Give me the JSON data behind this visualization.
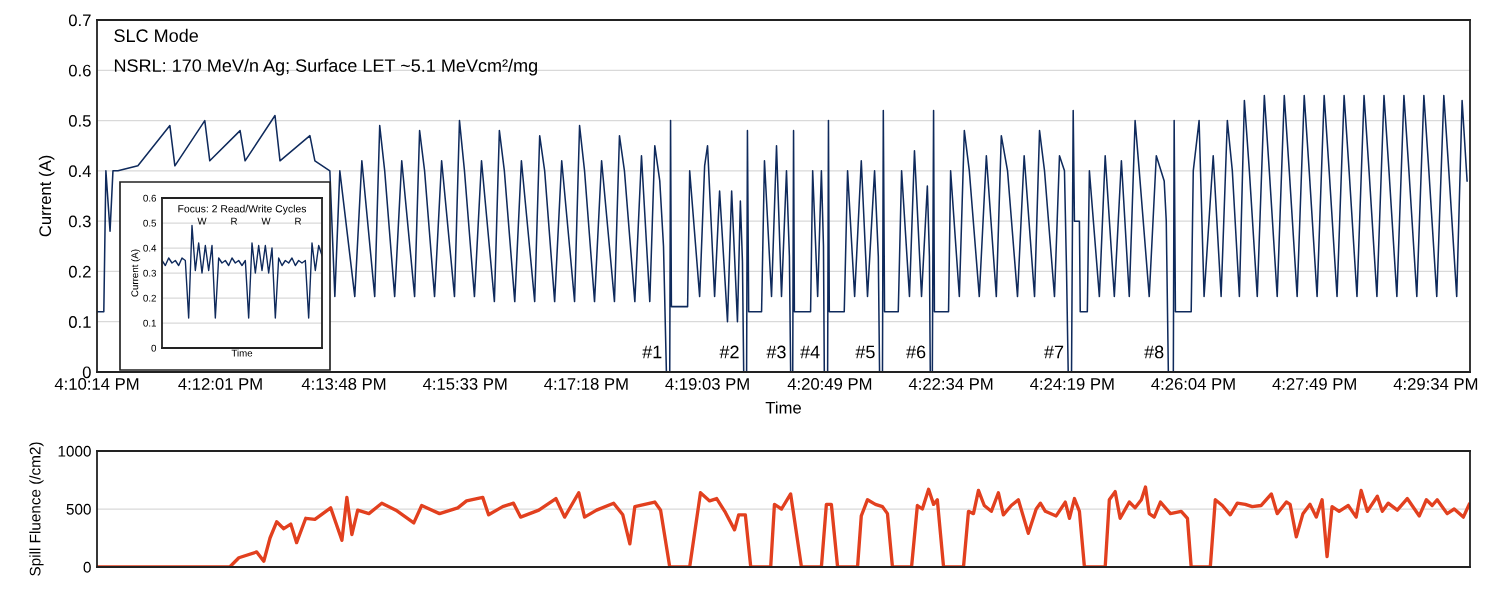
{
  "chart_data": [
    {
      "type": "line",
      "title": "SLC Mode",
      "subtitle": "NSRL: 170 MeV/n Ag; Surface LET ~5.1 MeVcm²/mg",
      "xlabel": "Time",
      "ylabel": "Current (A)",
      "xlim": [
        16.17056,
        16.501
      ],
      "ylim": [
        0,
        0.7
      ],
      "yticks": [
        0,
        0.1,
        0.2,
        0.3,
        0.4,
        0.5,
        0.6,
        0.7
      ],
      "xticks": [
        {
          "value": 16.17056,
          "label": "4:10:14 PM"
        },
        {
          "value": 16.20028,
          "label": "4:12:01 PM"
        },
        {
          "value": 16.23,
          "label": "4:13:48 PM"
        },
        {
          "value": 16.25917,
          "label": "4:15:33 PM"
        },
        {
          "value": 16.28833,
          "label": "4:17:18 PM"
        },
        {
          "value": 16.3175,
          "label": "4:19:03 PM"
        },
        {
          "value": 16.34694,
          "label": "4:20:49 PM"
        },
        {
          "value": 16.37611,
          "label": "4:22:34 PM"
        },
        {
          "value": 16.40528,
          "label": "4:24:19 PM"
        },
        {
          "value": 16.43444,
          "label": "4:26:04 PM"
        },
        {
          "value": 16.46361,
          "label": "4:27:49 PM"
        },
        {
          "value": 16.49278,
          "label": "4:29:34 PM"
        }
      ],
      "grid": "y",
      "annotations": [
        {
          "text": "#1",
          "x": 16.3076,
          "y": 0.02
        },
        {
          "text": "#2",
          "x": 16.3262,
          "y": 0.02
        },
        {
          "text": "#3",
          "x": 16.3375,
          "y": 0.02
        },
        {
          "text": "#4",
          "x": 16.3456,
          "y": 0.02
        },
        {
          "text": "#5",
          "x": 16.3589,
          "y": 0.02
        },
        {
          "text": "#6",
          "x": 16.3711,
          "y": 0.02
        },
        {
          "text": "#7",
          "x": 16.4043,
          "y": 0.02
        },
        {
          "text": "#8",
          "x": 16.4284,
          "y": 0.02
        }
      ],
      "series": [
        {
          "color": "#0f2a5c",
          "x": [
            16.1706,
            16.1722,
            16.1727,
            16.1737,
            16.1744,
            16.1756,
            16.1804,
            16.1881,
            16.1893,
            16.1965,
            16.1977,
            16.205,
            16.2062,
            16.2134,
            16.2146,
            16.2218,
            16.223,
            16.2266,
            16.2278,
            16.229,
            16.2326,
            16.2343,
            16.2374,
            16.2386,
            16.2398,
            16.2422,
            16.2439,
            16.247,
            16.2482,
            16.2494,
            16.2518,
            16.2535,
            16.2566,
            16.2578,
            16.259,
            16.2614,
            16.2631,
            16.2662,
            16.2674,
            16.2686,
            16.2711,
            16.2727,
            16.2759,
            16.2771,
            16.2783,
            16.2807,
            16.2824,
            16.2855,
            16.2867,
            16.2879,
            16.2903,
            16.292,
            16.2951,
            16.2963,
            16.2975,
            16.3,
            16.3016,
            16.3036,
            16.3048,
            16.306,
            16.3069,
            16.3076,
            16.3084,
            16.3086,
            16.3088,
            16.3127,
            16.3132,
            16.3156,
            16.3168,
            16.3175,
            16.3192,
            16.3204,
            16.3223,
            16.3233,
            16.3247,
            16.3254,
            16.3259,
            16.3262,
            16.3269,
            16.3271,
            16.3274,
            16.3305,
            16.3312,
            16.3329,
            16.3341,
            16.3353,
            16.3365,
            16.3372,
            16.3375,
            16.338,
            16.3382,
            16.3384,
            16.3423,
            16.3428,
            16.344,
            16.3449,
            16.3454,
            16.3456,
            16.3464,
            16.3466,
            16.3468,
            16.3504,
            16.3512,
            16.3529,
            16.3545,
            16.356,
            16.3577,
            16.3586,
            16.3589,
            16.3596,
            16.3598,
            16.3601,
            16.3634,
            16.3642,
            16.3661,
            16.3673,
            16.369,
            16.3704,
            16.3709,
            16.3711,
            16.3716,
            16.3719,
            16.3721,
            16.3755,
            16.376,
            16.3781,
            16.3793,
            16.3805,
            16.3829,
            16.3846,
            16.387,
            16.3882,
            16.3897,
            16.3921,
            16.3937,
            16.3962,
            16.3974,
            16.3986,
            16.401,
            16.4022,
            16.4034,
            16.4039,
            16.4043,
            16.4051,
            16.4055,
            16.4058,
            16.407,
            16.4072,
            16.4089,
            16.4094,
            16.4118,
            16.4132,
            16.4154,
            16.4171,
            16.419,
            16.4204,
            16.4214,
            16.4238,
            16.4255,
            16.4274,
            16.4279,
            16.4284,
            16.4296,
            16.4298,
            16.4301,
            16.4339,
            16.4344,
            16.4358,
            16.437,
            16.4392,
            16.4411,
            16.4426,
            16.4438,
            16.4455,
            16.4467,
            16.4479,
            16.4498,
            16.4515,
            16.4527,
            16.4546,
            16.4563,
            16.4575,
            16.4594,
            16.4611,
            16.4623,
            16.4642,
            16.4659,
            16.4671,
            16.469,
            16.4707,
            16.4719,
            16.4738,
            16.4755,
            16.4767,
            16.4786,
            16.4803,
            16.4815,
            16.4834,
            16.4851,
            16.4863,
            16.4882,
            16.4899,
            16.4911,
            16.493,
            16.4947,
            16.4959,
            16.4978,
            16.4991,
            16.5003
          ],
          "values": [
            0.12,
            0.12,
            0.4,
            0.28,
            0.4,
            0.4,
            0.41,
            0.49,
            0.41,
            0.5,
            0.42,
            0.48,
            0.42,
            0.51,
            0.42,
            0.47,
            0.42,
            0.4,
            0.15,
            0.4,
            0.15,
            0.42,
            0.15,
            0.49,
            0.4,
            0.15,
            0.42,
            0.15,
            0.48,
            0.4,
            0.15,
            0.42,
            0.15,
            0.5,
            0.4,
            0.15,
            0.42,
            0.14,
            0.48,
            0.4,
            0.14,
            0.42,
            0.14,
            0.47,
            0.4,
            0.14,
            0.42,
            0.14,
            0.49,
            0.4,
            0.14,
            0.42,
            0.14,
            0.47,
            0.4,
            0.14,
            0.43,
            0.14,
            0.45,
            0.38,
            0.25,
            0,
            0,
            0.5,
            0.13,
            0.13,
            0.4,
            0.15,
            0.41,
            0.45,
            0.15,
            0.36,
            0.1,
            0.36,
            0.1,
            0.34,
            0.22,
            0,
            0,
            0.48,
            0.12,
            0.12,
            0.42,
            0.15,
            0.45,
            0.15,
            0.4,
            0.23,
            0,
            0,
            0.48,
            0.12,
            0.12,
            0.4,
            0.15,
            0.4,
            0.25,
            0,
            0,
            0.5,
            0.12,
            0.12,
            0.4,
            0.15,
            0.42,
            0.15,
            0.4,
            0.23,
            0,
            0,
            0.52,
            0.12,
            0.12,
            0.4,
            0.15,
            0.44,
            0.15,
            0.37,
            0.23,
            0,
            0,
            0.52,
            0.12,
            0.12,
            0.4,
            0.15,
            0.48,
            0.4,
            0.15,
            0.43,
            0.15,
            0.47,
            0.4,
            0.15,
            0.43,
            0.15,
            0.48,
            0.4,
            0.15,
            0.43,
            0.4,
            0.2,
            0,
            0,
            0.52,
            0.3,
            0.3,
            0.12,
            0.12,
            0.4,
            0.15,
            0.43,
            0.15,
            0.42,
            0.15,
            0.5,
            0.4,
            0.15,
            0.43,
            0.38,
            0.3,
            0,
            0,
            0.5,
            0.12,
            0.12,
            0.4,
            0.5,
            0.15,
            0.43,
            0.15,
            0.5,
            0.4,
            0.15,
            0.54,
            0.4,
            0.15,
            0.55,
            0.4,
            0.15,
            0.55,
            0.4,
            0.15,
            0.55,
            0.4,
            0.15,
            0.55,
            0.4,
            0.15,
            0.55,
            0.4,
            0.15,
            0.55,
            0.4,
            0.15,
            0.55,
            0.4,
            0.15,
            0.55,
            0.4,
            0.15,
            0.55,
            0.4,
            0.15,
            0.55,
            0.4,
            0.15,
            0.54,
            0.38
          ]
        }
      ]
    },
    {
      "type": "line",
      "title": "Focus: 2 Read/Write Cycles",
      "xlabel": "Time",
      "ylabel": "Current (A)",
      "categories": [
        null,
        null,
        null,
        null,
        null,
        null,
        null,
        null,
        null,
        null,
        null,
        null,
        null,
        null,
        null,
        null,
        null,
        null,
        null,
        null,
        null,
        null,
        null,
        null,
        null,
        null,
        null,
        null,
        null,
        null,
        null,
        null,
        null,
        null,
        null,
        null,
        null,
        null,
        null,
        null,
        null,
        null,
        null,
        null,
        null,
        null,
        null,
        null,
        null
      ],
      "ylim": [
        0,
        0.6
      ],
      "yticks": [
        0,
        0.1,
        0.2,
        0.3,
        0.4,
        0.5,
        0.6
      ],
      "grid": "y",
      "tick_labels": "y",
      "annotations": [
        "W",
        "R",
        "W",
        "R"
      ],
      "series": [
        {
          "color": "#0f2a5c",
          "values": [
            0.35,
            0.33,
            0.36,
            0.34,
            0.35,
            0.33,
            0.36,
            0.35,
            0.12,
            0.49,
            0.31,
            0.42,
            0.3,
            0.41,
            0.31,
            0.41,
            0.12,
            0.36,
            0.34,
            0.35,
            0.33,
            0.36,
            0.34,
            0.35,
            0.33,
            0.35,
            0.12,
            0.42,
            0.3,
            0.41,
            0.31,
            0.41,
            0.3,
            0.4,
            0.12,
            0.36,
            0.33,
            0.35,
            0.34,
            0.36,
            0.33,
            0.35,
            0.34,
            0.35,
            0.12,
            0.42,
            0.31,
            0.41,
            0.37
          ]
        }
      ]
    },
    {
      "type": "line",
      "ylabel": "Spill Fluence (/cm2)",
      "xlim": [
        16.17056,
        16.501
      ],
      "ylim": [
        0,
        1000
      ],
      "yticks": [
        0,
        500,
        1000
      ],
      "grid": "y",
      "tick_labels": "y",
      "series": [
        {
          "color": "#e2401f",
          "x": [
            16.1706,
            16.2025,
            16.2047,
            16.209,
            16.2107,
            16.2122,
            16.2138,
            16.2155,
            16.2172,
            16.2186,
            16.2208,
            16.223,
            16.2268,
            16.2295,
            16.2307,
            16.2319,
            16.2333,
            16.236,
            16.2391,
            16.2425,
            16.2468,
            16.2487,
            16.253,
            16.2574,
            16.2595,
            16.2634,
            16.2648,
            16.2682,
            16.2708,
            16.2725,
            16.2769,
            16.281,
            16.2831,
            16.2865,
            16.2879,
            16.2908,
            16.2949,
            16.2971,
            16.2988,
            16.3,
            16.3048,
            16.3062,
            16.3084,
            16.3132,
            16.3158,
            16.318,
            16.3197,
            16.3218,
            16.324,
            16.325,
            16.3266,
            16.3279,
            16.3327,
            16.3336,
            16.3353,
            16.3375,
            16.3401,
            16.3449,
            16.3461,
            16.3473,
            16.3488,
            16.3536,
            16.3545,
            16.356,
            16.3579,
            16.3596,
            16.3608,
            16.362,
            16.3666,
            16.368,
            16.3692,
            16.3707,
            16.3719,
            16.3728,
            16.3743,
            16.3791,
            16.3803,
            16.3815,
            16.3827,
            16.3841,
            16.3858,
            16.3875,
            16.3887,
            16.3906,
            16.3923,
            16.3947,
            16.3966,
            16.3976,
            16.3988,
            16.4014,
            16.4036,
            16.4046,
            16.4058,
            16.407,
            16.4082,
            16.4132,
            16.4142,
            16.4156,
            16.4168,
            16.419,
            16.4204,
            16.4219,
            16.4229,
            16.4238,
            16.425,
            16.4265,
            16.4289,
            16.4315,
            16.433,
            16.4339,
            16.4385,
            16.4397,
            16.4414,
            16.4433,
            16.445,
            16.4469,
            16.4486,
            16.4507,
            16.4532,
            16.4546,
            16.4568,
            16.4577,
            16.4592,
            16.4608,
            16.4625,
            16.464,
            16.4654,
            16.4666,
            16.4678,
            16.4695,
            16.4717,
            16.4736,
            16.4748,
            16.4763,
            16.4787,
            16.4799,
            16.4813,
            16.4835,
            16.4859,
            16.4888,
            16.4905,
            16.4919,
            16.4931,
            16.4955,
            16.4972,
            16.4994,
            16.5008
          ],
          "values": [
            0,
            0,
            80,
            130,
            50,
            250,
            390,
            330,
            370,
            210,
            420,
            410,
            510,
            230,
            600,
            280,
            490,
            460,
            550,
            490,
            380,
            530,
            460,
            510,
            570,
            600,
            450,
            520,
            550,
            430,
            490,
            590,
            430,
            640,
            430,
            490,
            550,
            450,
            200,
            520,
            560,
            490,
            0,
            0,
            640,
            570,
            590,
            470,
            320,
            450,
            450,
            0,
            0,
            540,
            500,
            630,
            0,
            0,
            540,
            540,
            0,
            0,
            440,
            580,
            540,
            520,
            460,
            0,
            0,
            530,
            500,
            670,
            540,
            580,
            0,
            0,
            480,
            460,
            660,
            530,
            480,
            640,
            450,
            530,
            580,
            290,
            500,
            550,
            480,
            440,
            560,
            420,
            590,
            480,
            0,
            0,
            580,
            650,
            420,
            560,
            510,
            580,
            690,
            460,
            430,
            560,
            460,
            480,
            420,
            0,
            0,
            580,
            530,
            450,
            550,
            540,
            520,
            530,
            630,
            460,
            560,
            540,
            260,
            460,
            540,
            430,
            580,
            90,
            520,
            480,
            530,
            430,
            660,
            480,
            610,
            480,
            550,
            490,
            590,
            440,
            580,
            530,
            580,
            460,
            500,
            430,
            540
          ]
        }
      ]
    }
  ]
}
